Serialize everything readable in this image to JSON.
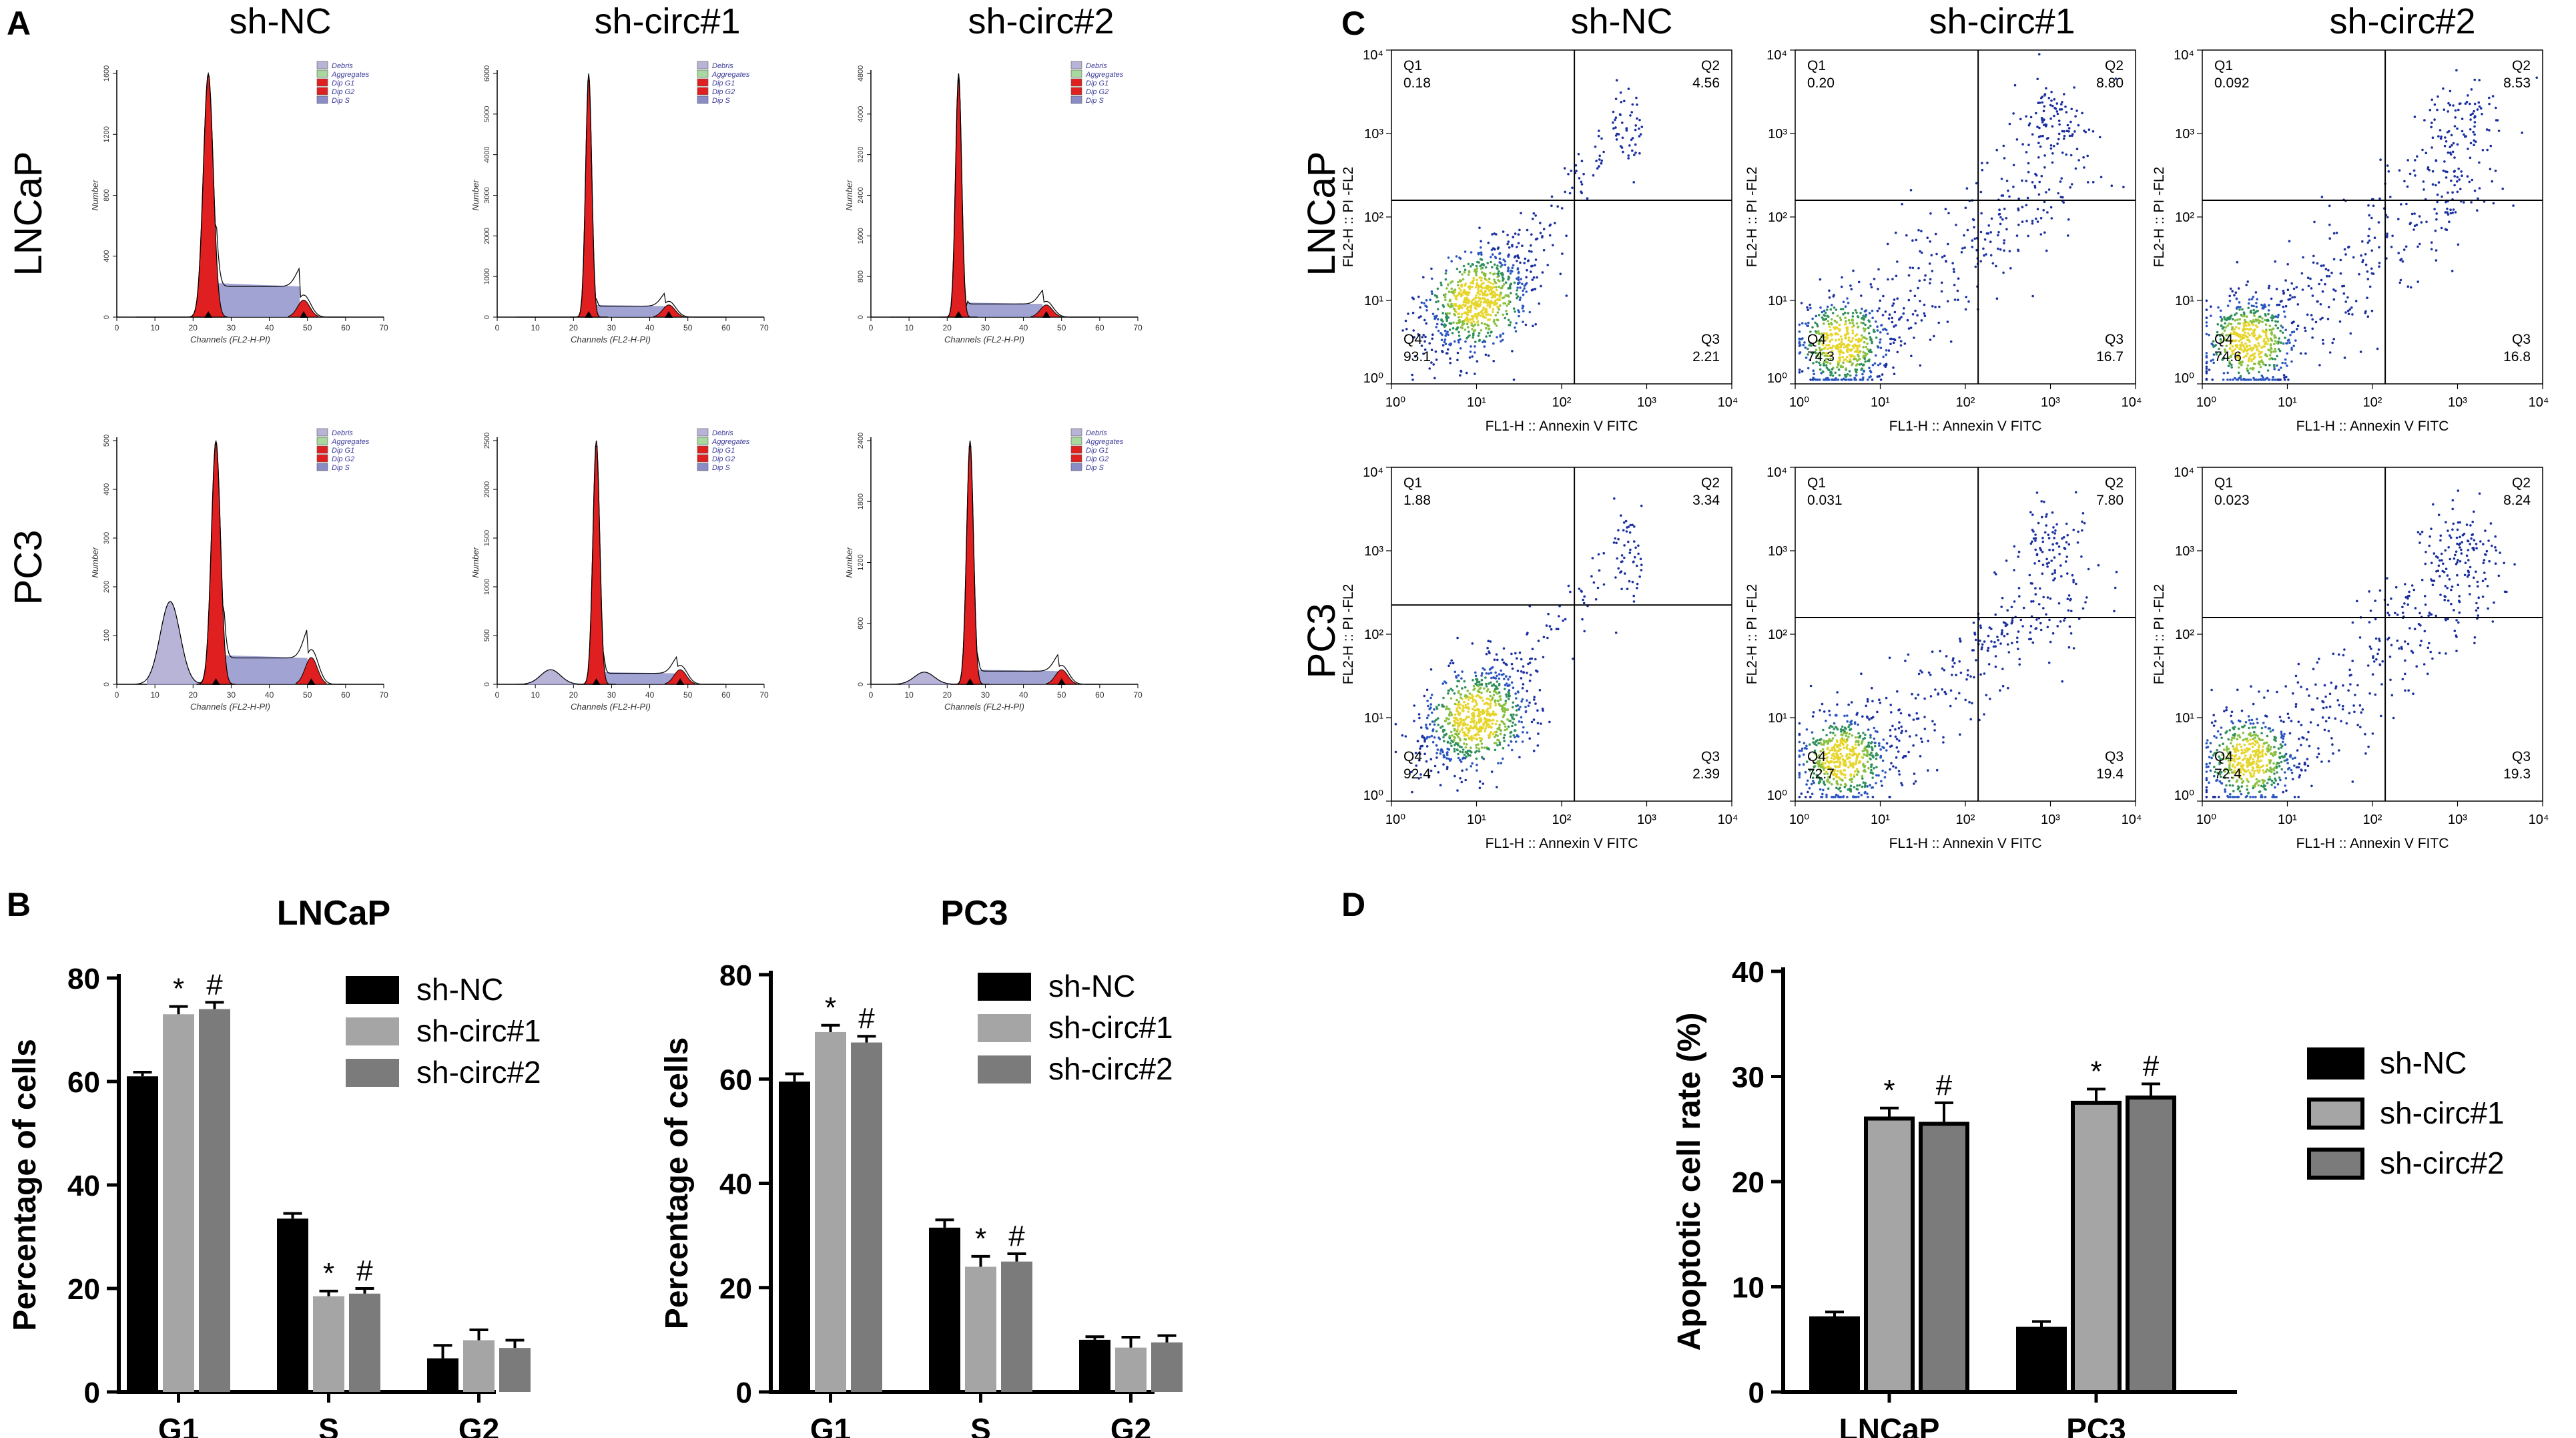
{
  "panels": {
    "A": "A",
    "B": "B",
    "C": "C",
    "D": "D"
  },
  "groups": [
    "sh-NC",
    "sh-circ#1",
    "sh-circ#2"
  ],
  "cell_lines": [
    "LNCaP",
    "PC3"
  ],
  "histogram": {
    "xlabel": "Channels (FL2-H-PI)",
    "ylabel": "Number",
    "legend": [
      "Debris",
      "Aggregates",
      "Dip G1",
      "Dip G2",
      "Dip S"
    ],
    "legend_colors": [
      "#b8b4d8",
      "#a8d8a0",
      "#e02020",
      "#e02020",
      "#8a8cc8"
    ],
    "x_ticks": [
      "0",
      "10",
      "20",
      "30",
      "40",
      "50",
      "60",
      "70"
    ],
    "plots": [
      {
        "line": "LNCaP",
        "group": "sh-NC",
        "yticks": [
          "0",
          "400",
          "800",
          "1200",
          "1600"
        ]
      },
      {
        "line": "LNCaP",
        "group": "sh-circ#1",
        "yticks": [
          "0",
          "1000",
          "2000",
          "3000",
          "4000",
          "5000",
          "6000"
        ]
      },
      {
        "line": "LNCaP",
        "group": "sh-circ#2",
        "yticks": [
          "0",
          "800",
          "1600",
          "2400",
          "3200",
          "4000",
          "4800"
        ]
      },
      {
        "line": "PC3",
        "group": "sh-NC",
        "yticks": [
          "0",
          "100",
          "200",
          "300",
          "400",
          "500"
        ]
      },
      {
        "line": "PC3",
        "group": "sh-circ#1",
        "yticks": [
          "0",
          "500",
          "1000",
          "1500",
          "2000",
          "2500"
        ]
      },
      {
        "line": "PC3",
        "group": "sh-circ#2",
        "yticks": [
          "0",
          "600",
          "1200",
          "1800",
          "2400"
        ]
      }
    ]
  },
  "flow": {
    "xlabel": "FL1-H :: Annexin V FITC",
    "ylabel": "FL2-H :: PI -FL2",
    "plots": [
      {
        "line": "LNCaP",
        "group": "sh-NC",
        "q1": "0.18",
        "q2": "4.56",
        "q3": "2.21",
        "q4": "93.1"
      },
      {
        "line": "LNCaP",
        "group": "sh-circ#1",
        "q1": "0.20",
        "q2": "8.80",
        "q3": "16.7",
        "q4": "74.3"
      },
      {
        "line": "LNCaP",
        "group": "sh-circ#2",
        "q1": "0.092",
        "q2": "8.53",
        "q3": "16.8",
        "q4": "74.6"
      },
      {
        "line": "PC3",
        "group": "sh-NC",
        "q1": "1.88",
        "q2": "3.34",
        "q3": "2.39",
        "q4": "92.4"
      },
      {
        "line": "PC3",
        "group": "sh-circ#1",
        "q1": "0.031",
        "q2": "7.80",
        "q3": "19.4",
        "q4": "72.7"
      },
      {
        "line": "PC3",
        "group": "sh-circ#2",
        "q1": "0.023",
        "q2": "8.24",
        "q3": "19.3",
        "q4": "72.4"
      }
    ]
  },
  "chart_data": [
    {
      "type": "bar",
      "title": "LNCaP",
      "ylabel": "Percentage of cells",
      "categories": [
        "G1",
        "S",
        "G2"
      ],
      "ylim": [
        0,
        80
      ],
      "yticks": [
        0,
        20,
        40,
        60,
        80
      ],
      "series": [
        {
          "name": "sh-NC",
          "values": [
            61,
            33.5,
            6.5
          ],
          "errors": [
            0.8,
            1,
            2.5
          ],
          "marks": [
            "",
            "",
            ""
          ]
        },
        {
          "name": "sh-circ#1",
          "values": [
            73,
            18.5,
            10
          ],
          "errors": [
            1.5,
            1,
            2
          ],
          "marks": [
            "*",
            "*",
            ""
          ]
        },
        {
          "name": "sh-circ#2",
          "values": [
            74,
            19,
            8.5
          ],
          "errors": [
            1.3,
            1,
            1.5
          ],
          "marks": [
            "#",
            "#",
            ""
          ]
        }
      ],
      "legend": [
        "sh-NC",
        "sh-circ#1",
        "sh-circ#2"
      ]
    },
    {
      "type": "bar",
      "title": "PC3",
      "ylabel": "Percentage of cells",
      "categories": [
        "G1",
        "S",
        "G2"
      ],
      "ylim": [
        0,
        80
      ],
      "yticks": [
        0,
        20,
        40,
        60,
        80
      ],
      "series": [
        {
          "name": "sh-NC",
          "values": [
            59.5,
            31.5,
            10
          ],
          "errors": [
            1.5,
            1.5,
            0.6
          ],
          "marks": [
            "",
            "",
            ""
          ]
        },
        {
          "name": "sh-circ#1",
          "values": [
            69,
            24,
            8.5
          ],
          "errors": [
            1.3,
            2,
            2
          ],
          "marks": [
            "*",
            "*",
            ""
          ]
        },
        {
          "name": "sh-circ#2",
          "values": [
            67,
            25,
            9.5
          ],
          "errors": [
            1.2,
            1.5,
            1.3
          ],
          "marks": [
            "#",
            "#",
            ""
          ]
        }
      ],
      "legend": [
        "sh-NC",
        "sh-circ#1",
        "sh-circ#2"
      ]
    },
    {
      "type": "bar",
      "title": "",
      "ylabel": "Apoptotic cell rate (%)",
      "categories": [
        "LNCaP",
        "PC3"
      ],
      "ylim": [
        0,
        40
      ],
      "yticks": [
        0,
        10,
        20,
        30,
        40
      ],
      "series": [
        {
          "name": "sh-NC",
          "values": [
            7,
            6
          ],
          "errors": [
            0.6,
            0.7
          ],
          "marks": [
            "",
            ""
          ]
        },
        {
          "name": "sh-circ#1",
          "values": [
            26,
            27.5
          ],
          "errors": [
            1,
            1.3
          ],
          "marks": [
            "*",
            "*"
          ]
        },
        {
          "name": "sh-circ#2",
          "values": [
            25.5,
            28
          ],
          "errors": [
            2,
            1.3
          ],
          "marks": [
            "#",
            "#"
          ]
        }
      ],
      "legend": [
        "sh-NC",
        "sh-circ#1",
        "sh-circ#2"
      ]
    }
  ],
  "colors": {
    "black": "#000000",
    "light_gray": "#a5a5a5",
    "dark_gray": "#7b7b7b",
    "g1_red": "#e02020",
    "s_blue": "#8a8cc8",
    "debris": "#b8b4d8"
  }
}
